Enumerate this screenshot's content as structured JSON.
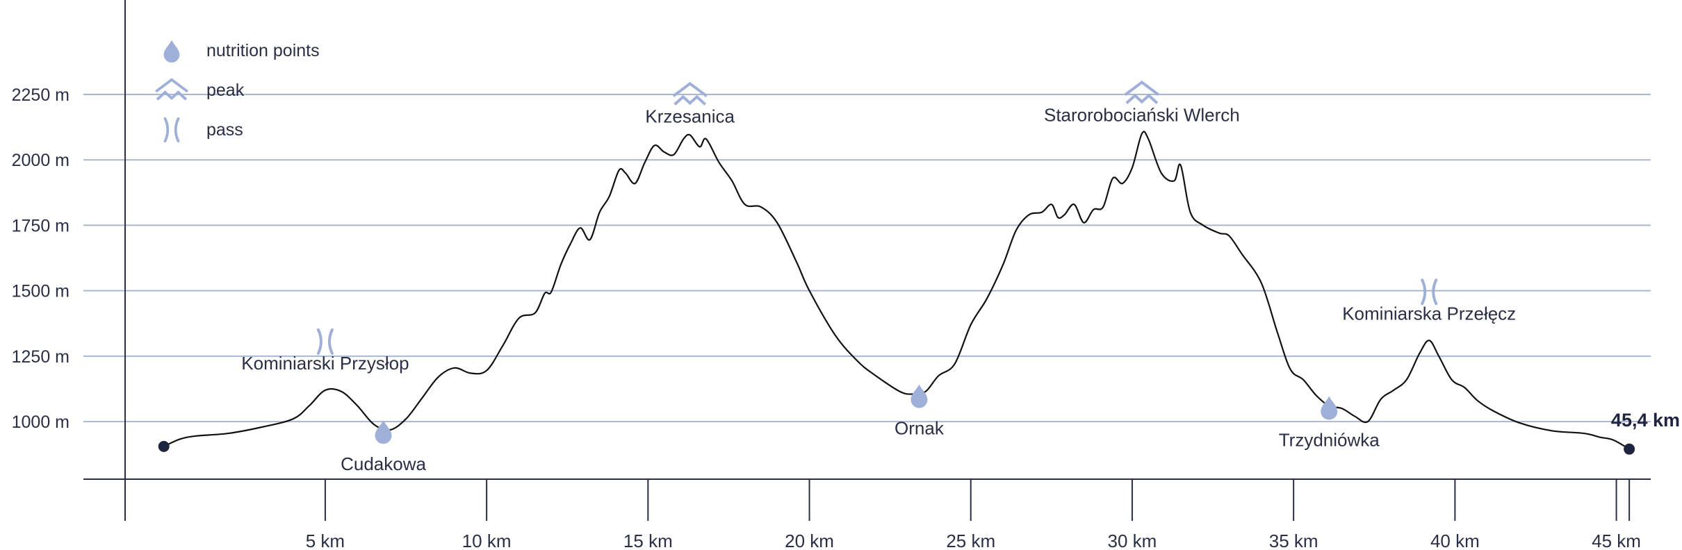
{
  "colors": {
    "grid": "#a9b6d2",
    "accent": "#9fb0d8",
    "line": "#111111",
    "axis": "#2a2f45",
    "dot": "#1f2540"
  },
  "legend": [
    {
      "icon": "drop-icon",
      "label": "nutrition points"
    },
    {
      "icon": "peak-icon",
      "label": "peak"
    },
    {
      "icon": "pass-icon",
      "label": "pass"
    }
  ],
  "end_label": "45,4 km",
  "chart_data": {
    "type": "area-profile",
    "xlim": [
      -1.2,
      46
    ],
    "ylim": [
      780,
      2510
    ],
    "y_ticks": [
      1000,
      1250,
      1500,
      1750,
      2000,
      2250
    ],
    "y_tick_labels": [
      "1000 m",
      "1250 m",
      "1500 m",
      "1750 m",
      "2000 m",
      "2250 m"
    ],
    "x_ticks": [
      5,
      10,
      15,
      20,
      25,
      30,
      35,
      40,
      45
    ],
    "x_tick_labels": [
      "5 km",
      "10 km",
      "15 km",
      "20 km",
      "25 km",
      "30 km",
      "35 km",
      "40 km",
      "45 km"
    ],
    "x_end": 45.4,
    "profile": [
      [
        0,
        905
      ],
      [
        0.5,
        933
      ],
      [
        1,
        945
      ],
      [
        2,
        955
      ],
      [
        3,
        978
      ],
      [
        4,
        1010
      ],
      [
        4.5,
        1060
      ],
      [
        5,
        1120
      ],
      [
        5.5,
        1115
      ],
      [
        6,
        1060
      ],
      [
        6.5,
        990
      ],
      [
        7,
        968
      ],
      [
        7.5,
        1010
      ],
      [
        8,
        1090
      ],
      [
        8.5,
        1170
      ],
      [
        9,
        1205
      ],
      [
        9.5,
        1185
      ],
      [
        10,
        1195
      ],
      [
        10.5,
        1290
      ],
      [
        11,
        1395
      ],
      [
        11.5,
        1415
      ],
      [
        11.8,
        1490
      ],
      [
        12,
        1495
      ],
      [
        12.3,
        1600
      ],
      [
        12.6,
        1680
      ],
      [
        12.9,
        1740
      ],
      [
        13.2,
        1695
      ],
      [
        13.5,
        1800
      ],
      [
        13.8,
        1860
      ],
      [
        14.1,
        1960
      ],
      [
        14.3,
        1950
      ],
      [
        14.6,
        1910
      ],
      [
        14.9,
        1990
      ],
      [
        15.2,
        2055
      ],
      [
        15.5,
        2030
      ],
      [
        15.8,
        2020
      ],
      [
        16.1,
        2080
      ],
      [
        16.3,
        2095
      ],
      [
        16.6,
        2050
      ],
      [
        16.8,
        2080
      ],
      [
        17.2,
        1990
      ],
      [
        17.6,
        1920
      ],
      [
        18,
        1830
      ],
      [
        18.5,
        1820
      ],
      [
        19,
        1760
      ],
      [
        19.6,
        1610
      ],
      [
        20,
        1500
      ],
      [
        20.8,
        1330
      ],
      [
        21.5,
        1230
      ],
      [
        22,
        1180
      ],
      [
        22.8,
        1115
      ],
      [
        23.2,
        1105
      ],
      [
        23.6,
        1115
      ],
      [
        24,
        1175
      ],
      [
        24.5,
        1220
      ],
      [
        25,
        1370
      ],
      [
        25.5,
        1470
      ],
      [
        26,
        1600
      ],
      [
        26.4,
        1730
      ],
      [
        26.8,
        1790
      ],
      [
        27.2,
        1800
      ],
      [
        27.5,
        1830
      ],
      [
        27.7,
        1780
      ],
      [
        27.9,
        1790
      ],
      [
        28.2,
        1830
      ],
      [
        28.5,
        1760
      ],
      [
        28.8,
        1810
      ],
      [
        29.1,
        1820
      ],
      [
        29.4,
        1930
      ],
      [
        29.7,
        1910
      ],
      [
        30,
        1970
      ],
      [
        30.3,
        2100
      ],
      [
        30.5,
        2080
      ],
      [
        30.9,
        1950
      ],
      [
        31.3,
        1920
      ],
      [
        31.5,
        1980
      ],
      [
        31.8,
        1800
      ],
      [
        32.2,
        1750
      ],
      [
        32.7,
        1720
      ],
      [
        33,
        1710
      ],
      [
        33.4,
        1640
      ],
      [
        34,
        1530
      ],
      [
        34.5,
        1340
      ],
      [
        34.9,
        1200
      ],
      [
        35.3,
        1160
      ],
      [
        35.7,
        1100
      ],
      [
        36.1,
        1060
      ],
      [
        36.5,
        1050
      ],
      [
        36.9,
        1020
      ],
      [
        37.3,
        1000
      ],
      [
        37.7,
        1085
      ],
      [
        38.1,
        1120
      ],
      [
        38.5,
        1160
      ],
      [
        38.9,
        1260
      ],
      [
        39.2,
        1310
      ],
      [
        39.5,
        1250
      ],
      [
        39.9,
        1160
      ],
      [
        40.3,
        1130
      ],
      [
        40.7,
        1080
      ],
      [
        41.2,
        1040
      ],
      [
        42,
        995
      ],
      [
        43,
        965
      ],
      [
        44,
        955
      ],
      [
        44.5,
        940
      ],
      [
        44.9,
        930
      ],
      [
        45.4,
        895
      ]
    ],
    "points_of_interest": [
      {
        "name": "Kominiarski Przysłop",
        "km": 5,
        "elev": 1120,
        "type": "pass",
        "label_pos": "above"
      },
      {
        "name": "Cudakowa",
        "km": 6.8,
        "elev": 968,
        "type": "nutrition",
        "label_pos": "below"
      },
      {
        "name": "Krzesanica",
        "km": 16.3,
        "elev": 2095,
        "type": "peak",
        "label_pos": "above"
      },
      {
        "name": "Ornak",
        "km": 23.4,
        "elev": 1105,
        "type": "nutrition",
        "label_pos": "below"
      },
      {
        "name": "Starorobociański Wlerch",
        "km": 30.3,
        "elev": 2100,
        "type": "peak",
        "label_pos": "above"
      },
      {
        "name": "Trzydniówka",
        "km": 36.1,
        "elev": 1060,
        "type": "nutrition",
        "label_pos": "below"
      },
      {
        "name": "Kominiarska Przełęcz",
        "km": 39.2,
        "elev": 1310,
        "type": "pass",
        "label_pos": "above"
      }
    ]
  }
}
